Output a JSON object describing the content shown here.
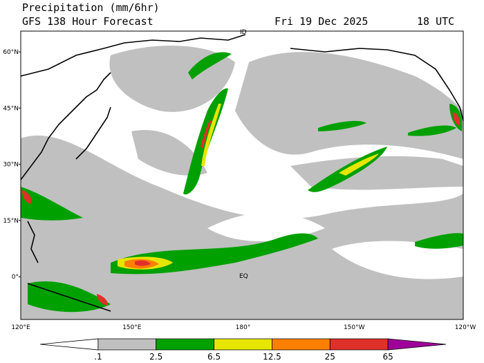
{
  "header": {
    "title": "Precipitation (mm/6hr)",
    "subtitle": "GFS 138 Hour Forecast",
    "date": "Fri 19 Dec 2025",
    "time": "18 UTC"
  },
  "map": {
    "lat_labels": [
      "60°N",
      "45°N",
      "30°N",
      "15°N",
      "0°"
    ],
    "lon_labels": [
      "120°E",
      "150°E",
      "180°",
      "150°W",
      "120°W"
    ],
    "markers": [
      "ID",
      "EQ"
    ]
  },
  "legend": {
    "labels": [
      ".1",
      "2.5",
      "6.5",
      "12.5",
      "25",
      "65"
    ],
    "colors": [
      "#ffffff",
      "#c0c0c0",
      "#00a000",
      "#e6e600",
      "#ff8000",
      "#e0302a",
      "#a0009a"
    ]
  }
}
